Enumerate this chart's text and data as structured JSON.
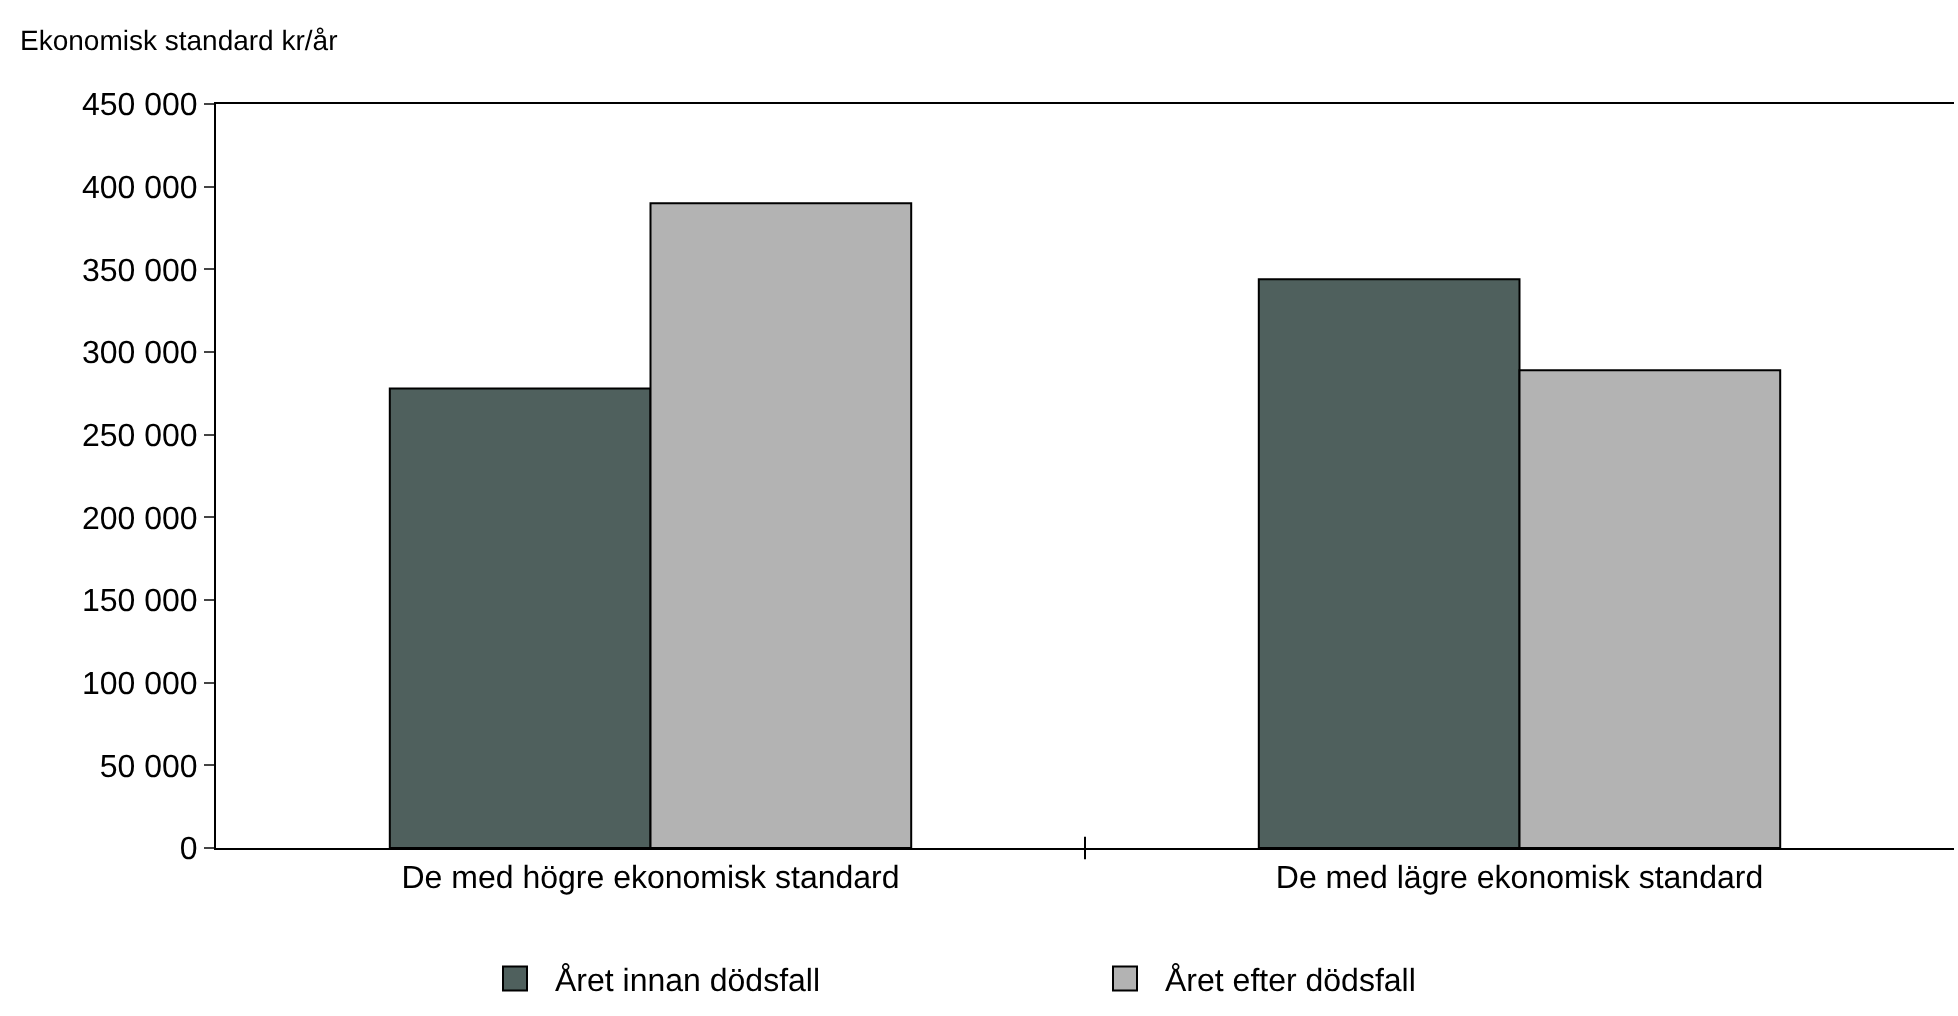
{
  "chart_data": {
    "type": "bar",
    "ylabel": "Ekonomisk standard kr/år",
    "categories": [
      "De med högre ekonomisk standard",
      "De med lägre ekonomisk standard"
    ],
    "series": [
      {
        "name": "Året innan dödsfall",
        "color": "#4f605d",
        "values": [
          278000,
          344000
        ]
      },
      {
        "name": "Året efter dödsfall",
        "color": "#b3b3b3",
        "values": [
          390000,
          289000
        ]
      }
    ],
    "ylim": [
      0,
      450000
    ],
    "yticks": [
      {
        "value": 0,
        "label": "0"
      },
      {
        "value": 50000,
        "label": "50 000"
      },
      {
        "value": 100000,
        "label": "100 000"
      },
      {
        "value": 150000,
        "label": "150 000"
      },
      {
        "value": 200000,
        "label": "200 000"
      },
      {
        "value": 250000,
        "label": "250 000"
      },
      {
        "value": 300000,
        "label": "300 000"
      },
      {
        "value": 350000,
        "label": "350 000"
      },
      {
        "value": 400000,
        "label": "400 000"
      },
      {
        "value": 450000,
        "label": "450 000"
      }
    ],
    "legend": "bottom"
  }
}
